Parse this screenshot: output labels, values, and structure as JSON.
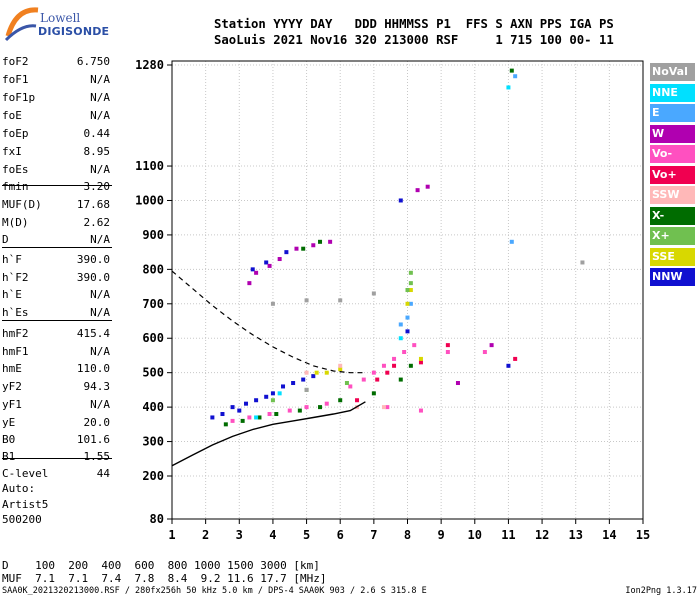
{
  "logo": {
    "line1": "Lowell",
    "line2": "DIGISONDE"
  },
  "header": {
    "row1": "Station YYYY DAY   DDD HHMMSS P1  FFS S AXN PPS IGA PS",
    "row2": "SaoLuis 2021 Nov16 320 213000 RSF     1 715 100 00- 11"
  },
  "params": [
    {
      "name": "foF2",
      "value": "6.750"
    },
    {
      "name": "foF1",
      "value": "N/A"
    },
    {
      "name": "foF1p",
      "value": "N/A"
    },
    {
      "name": "foE",
      "value": "N/A"
    },
    {
      "name": "foEp",
      "value": "0.44"
    },
    {
      "name": "fxI",
      "value": "8.95"
    },
    {
      "name": "foEs",
      "value": "N/A"
    },
    {
      "name": "fmin",
      "value": "3.20"
    },
    {
      "name": "MUF(D)",
      "value": "17.68"
    },
    {
      "name": "M(D)",
      "value": "2.62"
    },
    {
      "name": "D",
      "value": "N/A"
    },
    {
      "name": "h`F",
      "value": "390.0"
    },
    {
      "name": "h`F2",
      "value": "390.0"
    },
    {
      "name": "h`E",
      "value": "N/A"
    },
    {
      "name": "h`Es",
      "value": "N/A"
    },
    {
      "name": "hmF2",
      "value": "415.4"
    },
    {
      "name": "hmF1",
      "value": "N/A"
    },
    {
      "name": "hmE",
      "value": "110.0"
    },
    {
      "name": "yF2",
      "value": "94.3"
    },
    {
      "name": "yF1",
      "value": "N/A"
    },
    {
      "name": "yE",
      "value": "20.0"
    },
    {
      "name": "B0",
      "value": "101.6"
    },
    {
      "name": "B1",
      "value": "1.55"
    },
    {
      "name": "C-level",
      "value": "44"
    }
  ],
  "auto": {
    "line1": "Auto:",
    "line2": "Artist5",
    "line3": "500200"
  },
  "legend": [
    {
      "label": "NoVal",
      "color": "#a0a0a0"
    },
    {
      "label": "NNE",
      "color": "#00e0ff"
    },
    {
      "label": "E",
      "color": "#4aa8ff"
    },
    {
      "label": "W",
      "color": "#b000b0"
    },
    {
      "label": "Vo-",
      "color": "#ff50c0"
    },
    {
      "label": "Vo+",
      "color": "#f00050"
    },
    {
      "label": "SSW",
      "color": "#ffb8b8"
    },
    {
      "label": "X-",
      "color": "#006c00"
    },
    {
      "label": "X+",
      "color": "#70c050"
    },
    {
      "label": "SSE",
      "color": "#d8d800"
    },
    {
      "label": "NNW",
      "color": "#1010d0"
    }
  ],
  "dmuf": {
    "row1": "D    100  200  400  600  800 1000 1500 3000 [km]",
    "row2": "MUF  7.1  7.1  7.4  7.8  8.4  9.2 11.6 17.7 [MHz]"
  },
  "footer": {
    "left": "SAA0K_2021320213000.RSF / 280fx256h 50 kHz 5.0 km / DPS-4 SAA0K 903 / 2.6 S 315.8 E",
    "right": "Ion2Png 1.3.17"
  },
  "chart_data": {
    "type": "scatter",
    "xlim": [
      1,
      15
    ],
    "xticks": [
      1,
      2,
      3,
      4,
      5,
      6,
      7,
      8,
      9,
      10,
      11,
      12,
      13,
      14,
      15
    ],
    "yticks": [
      80,
      200,
      300,
      400,
      500,
      600,
      700,
      800,
      900,
      1000,
      1100,
      1280
    ],
    "grid": true,
    "legend_position": "right",
    "series": [
      {
        "name": "NNW",
        "color": "#1010d0",
        "points": [
          [
            2.2,
            370
          ],
          [
            2.5,
            380
          ],
          [
            2.8,
            400
          ],
          [
            3.0,
            390
          ],
          [
            3.2,
            410
          ],
          [
            3.5,
            420
          ],
          [
            3.8,
            430
          ],
          [
            4.0,
            440
          ],
          [
            4.3,
            460
          ],
          [
            4.6,
            470
          ],
          [
            4.9,
            480
          ],
          [
            5.2,
            490
          ],
          [
            3.4,
            800
          ],
          [
            3.8,
            820
          ],
          [
            4.4,
            850
          ],
          [
            7.8,
            1000
          ],
          [
            8.0,
            620
          ],
          [
            11.0,
            520
          ]
        ]
      },
      {
        "name": "Vo-",
        "color": "#ff50c0",
        "points": [
          [
            2.8,
            360
          ],
          [
            3.3,
            370
          ],
          [
            3.9,
            380
          ],
          [
            4.5,
            390
          ],
          [
            5.0,
            400
          ],
          [
            5.6,
            410
          ],
          [
            6.3,
            460
          ],
          [
            6.7,
            480
          ],
          [
            7.0,
            500
          ],
          [
            7.3,
            520
          ],
          [
            7.6,
            540
          ],
          [
            7.9,
            560
          ],
          [
            8.2,
            580
          ],
          [
            7.4,
            400
          ],
          [
            8.4,
            390
          ],
          [
            9.2,
            560
          ],
          [
            10.3,
            560
          ]
        ]
      },
      {
        "name": "X-",
        "color": "#006c00",
        "points": [
          [
            2.6,
            350
          ],
          [
            3.1,
            360
          ],
          [
            3.6,
            370
          ],
          [
            4.1,
            380
          ],
          [
            4.8,
            390
          ],
          [
            5.4,
            400
          ],
          [
            6.0,
            420
          ],
          [
            7.0,
            440
          ],
          [
            7.8,
            480
          ],
          [
            8.1,
            520
          ],
          [
            4.9,
            860
          ],
          [
            5.4,
            880
          ],
          [
            11.1,
            1270
          ]
        ]
      },
      {
        "name": "W",
        "color": "#b000b0",
        "points": [
          [
            3.3,
            760
          ],
          [
            3.5,
            790
          ],
          [
            3.9,
            810
          ],
          [
            4.2,
            830
          ],
          [
            4.7,
            860
          ],
          [
            5.2,
            870
          ],
          [
            5.7,
            880
          ],
          [
            8.3,
            1030
          ],
          [
            8.6,
            1040
          ],
          [
            9.5,
            470
          ],
          [
            10.5,
            580
          ]
        ]
      },
      {
        "name": "E",
        "color": "#4aa8ff",
        "points": [
          [
            7.8,
            640
          ],
          [
            8.0,
            660
          ],
          [
            8.1,
            700
          ],
          [
            11.1,
            880
          ],
          [
            11.2,
            1260
          ]
        ]
      },
      {
        "name": "Vo+",
        "color": "#f00050",
        "points": [
          [
            7.1,
            480
          ],
          [
            7.4,
            500
          ],
          [
            7.6,
            520
          ],
          [
            8.4,
            530
          ],
          [
            6.5,
            420
          ],
          [
            9.2,
            580
          ],
          [
            11.2,
            540
          ]
        ]
      },
      {
        "name": "SSE",
        "color": "#d8d800",
        "points": [
          [
            5.3,
            500
          ],
          [
            5.6,
            500
          ],
          [
            6.0,
            510
          ],
          [
            8.0,
            700
          ],
          [
            8.1,
            740
          ],
          [
            8.4,
            540
          ]
        ]
      },
      {
        "name": "X+",
        "color": "#70c050",
        "points": [
          [
            4.0,
            420
          ],
          [
            5.0,
            450
          ],
          [
            6.2,
            470
          ],
          [
            8.0,
            740
          ],
          [
            8.1,
            760
          ],
          [
            8.1,
            790
          ]
        ]
      },
      {
        "name": "NNE",
        "color": "#00e0ff",
        "points": [
          [
            3.5,
            370
          ],
          [
            4.2,
            440
          ],
          [
            7.8,
            600
          ],
          [
            11.0,
            1240
          ]
        ]
      },
      {
        "name": "SSW",
        "color": "#ffb8b8",
        "points": [
          [
            6.5,
            400
          ],
          [
            7.3,
            400
          ],
          [
            5.0,
            500
          ],
          [
            6.0,
            520
          ]
        ]
      },
      {
        "name": "NoVal",
        "color": "#a0a0a0",
        "points": [
          [
            4.0,
            700
          ],
          [
            5.0,
            710
          ],
          [
            6.0,
            710
          ],
          [
            7.0,
            730
          ],
          [
            5.0,
            450
          ],
          [
            13.2,
            820
          ]
        ]
      }
    ],
    "profile": {
      "x": [
        1.0,
        1.6,
        2.2,
        2.8,
        3.4,
        4.0,
        4.6,
        5.2,
        5.8,
        6.3,
        6.75
      ],
      "y": [
        230,
        260,
        290,
        315,
        335,
        350,
        360,
        370,
        380,
        390,
        415.4
      ]
    },
    "dashed_curve": {
      "x": [
        1.0,
        1.6,
        2.2,
        2.8,
        3.4,
        4.0,
        4.6,
        5.2,
        5.8,
        6.3,
        6.75
      ],
      "y": [
        795,
        745,
        695,
        650,
        610,
        575,
        545,
        520,
        505,
        500,
        500
      ]
    }
  }
}
